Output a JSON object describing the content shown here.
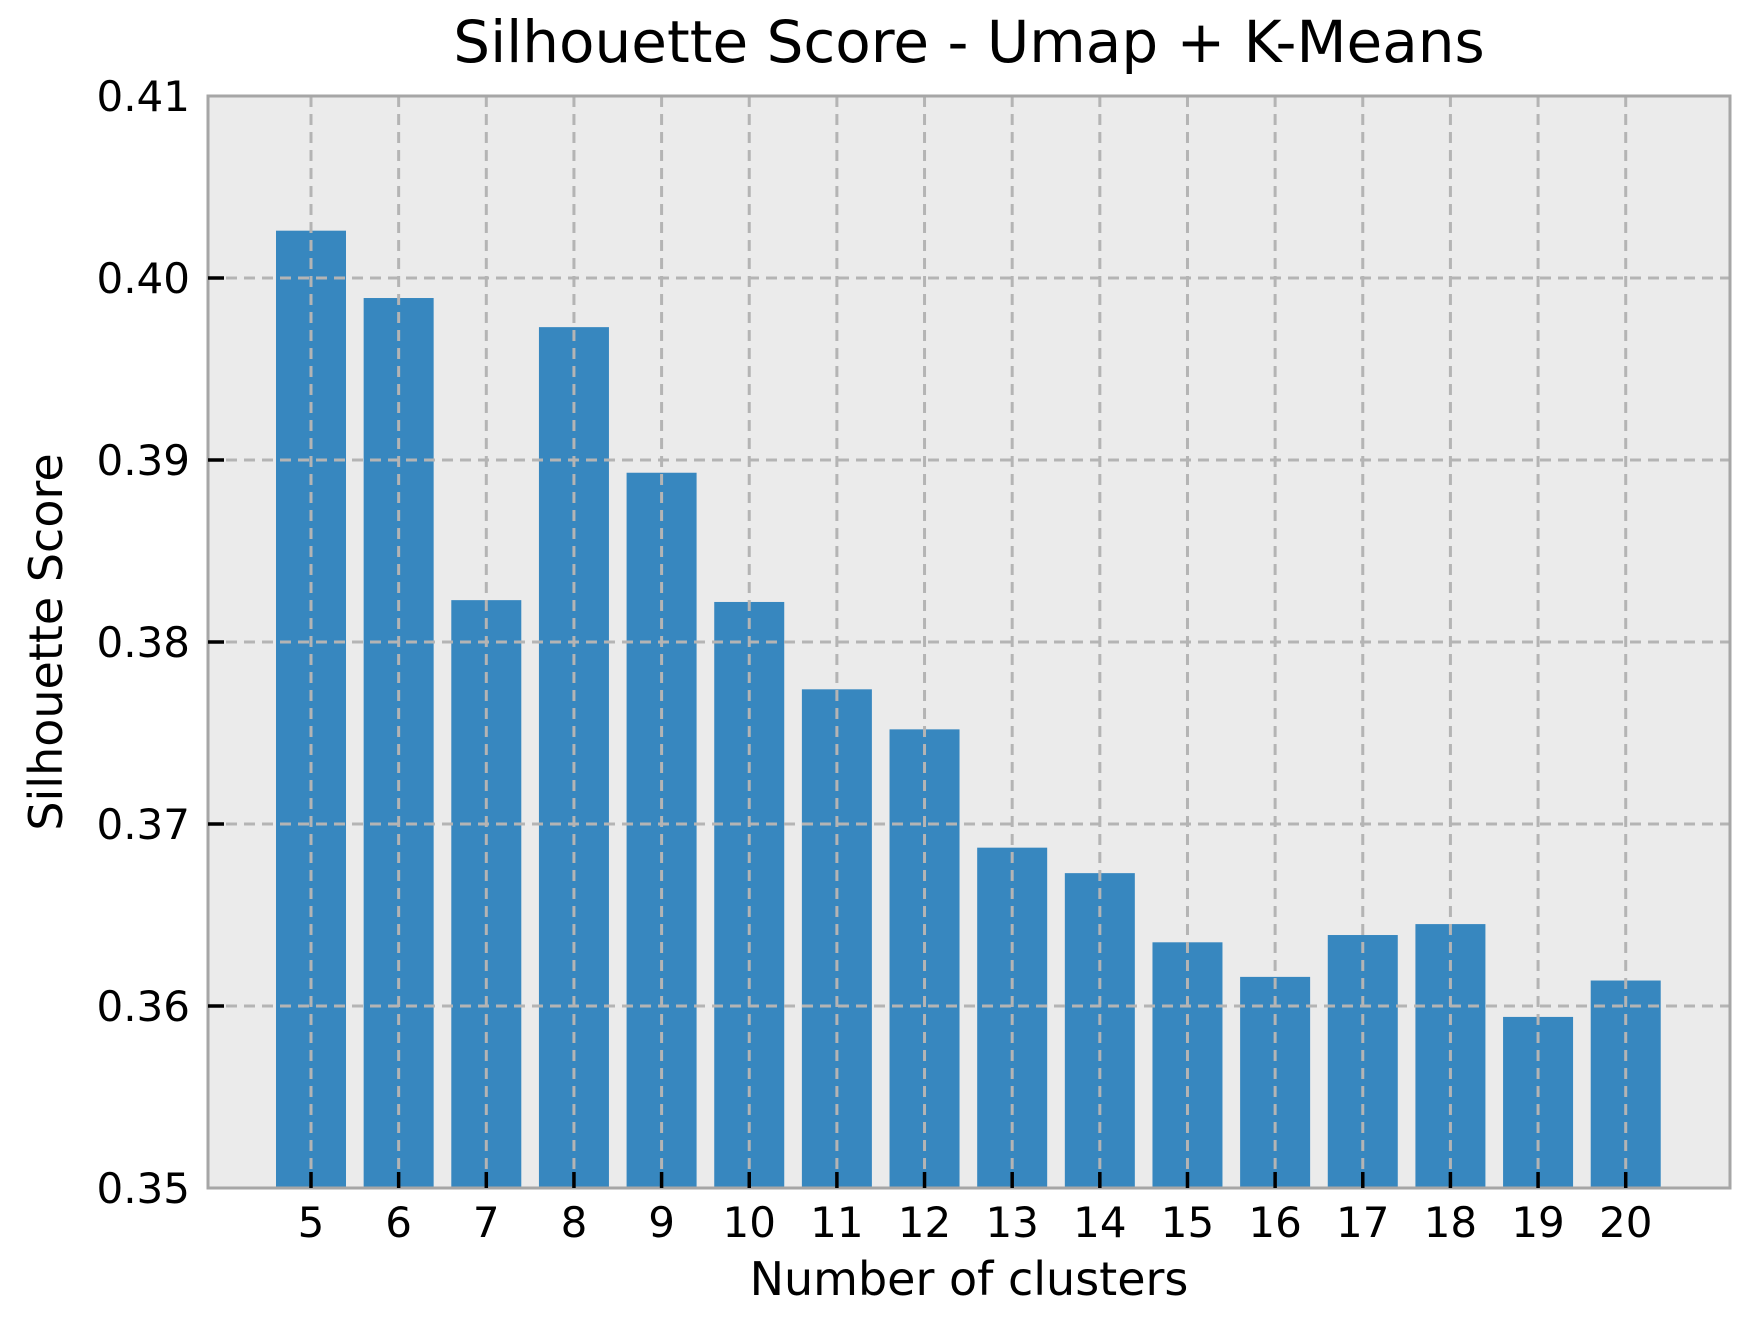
{
  "chart_data": {
    "type": "bar",
    "title": "Silhouette Score - Umap + K-Means",
    "xlabel": "Number of clusters",
    "ylabel": "Silhouette Score",
    "categories": [
      "5",
      "6",
      "7",
      "8",
      "9",
      "10",
      "11",
      "12",
      "13",
      "14",
      "15",
      "16",
      "17",
      "18",
      "19",
      "20"
    ],
    "values": [
      0.4026,
      0.3989,
      0.3823,
      0.3973,
      0.3893,
      0.3822,
      0.3774,
      0.3752,
      0.3687,
      0.3673,
      0.3635,
      0.3616,
      0.3639,
      0.3645,
      0.3594,
      0.3614
    ],
    "ylim": [
      0.35,
      0.41
    ],
    "ytick_step": 0.01,
    "ytick_labels": [
      "0.35",
      "0.36",
      "0.37",
      "0.38",
      "0.39",
      "0.40",
      "0.41"
    ],
    "grid": true,
    "grid_style": "dashed",
    "grid_above_bars": true,
    "legend": "none",
    "colors": {
      "bar": "#3787bf",
      "plot_bg": "#ebebeb",
      "grid": "#b4b4b4",
      "spine": "#a6a6a6",
      "tick": "#000000",
      "text": "#000000",
      "figure_bg": "#ffffff"
    }
  }
}
